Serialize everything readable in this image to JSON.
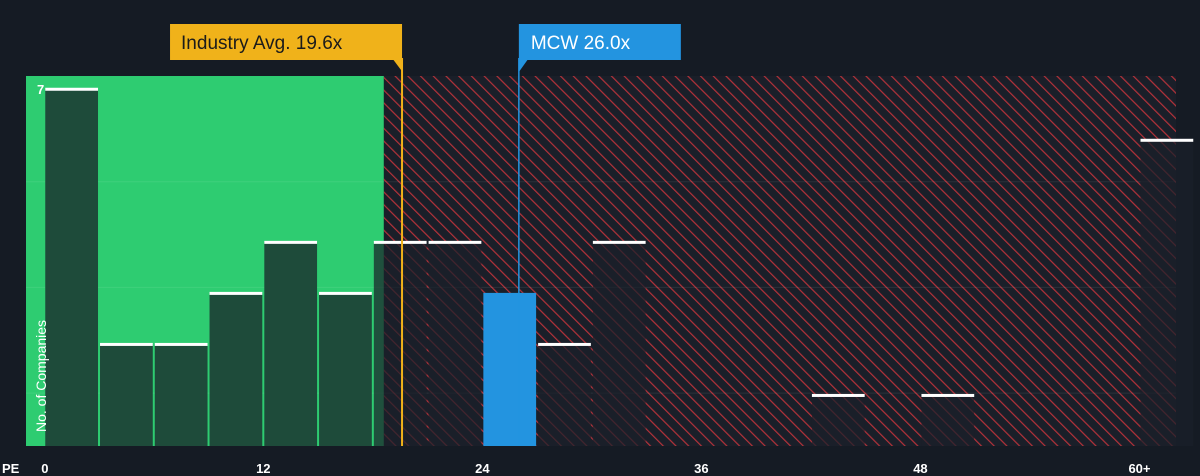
{
  "chart_data": {
    "type": "bar",
    "xlabel": "PE",
    "ylabel": "No. of Companies",
    "x_ticks": [
      "0",
      "12",
      "24",
      "36",
      "48",
      "60+"
    ],
    "x_tick_values": [
      0,
      12,
      24,
      36,
      48,
      60
    ],
    "xlim": [
      -1,
      62
    ],
    "y_tick_labels": [
      "7"
    ],
    "y_tick_values": [
      7
    ],
    "ylim": [
      0,
      7.25
    ],
    "bin_width": 3,
    "bins": [
      {
        "start": 0,
        "count": 7
      },
      {
        "start": 3,
        "count": 2
      },
      {
        "start": 6,
        "count": 2
      },
      {
        "start": 9,
        "count": 3
      },
      {
        "start": 12,
        "count": 4
      },
      {
        "start": 15,
        "count": 3
      },
      {
        "start": 18,
        "count": 4
      },
      {
        "start": 21,
        "count": 4
      },
      {
        "start": 24,
        "count": 3
      },
      {
        "start": 27,
        "count": 2
      },
      {
        "start": 30,
        "count": 4
      },
      {
        "start": 33,
        "count": 0
      },
      {
        "start": 36,
        "count": 0
      },
      {
        "start": 39,
        "count": 0
      },
      {
        "start": 42,
        "count": 1
      },
      {
        "start": 45,
        "count": 0
      },
      {
        "start": 48,
        "count": 1
      },
      {
        "start": 51,
        "count": 0
      },
      {
        "start": 54,
        "count": 0
      },
      {
        "start": 57,
        "count": 0
      },
      {
        "start": 60,
        "count": 6
      }
    ],
    "good_value_zone_end": 18.6,
    "industry_avg": {
      "label": "Industry Avg. 19.6x",
      "value": 19.6
    },
    "company": {
      "label": "MCW 26.0x",
      "value": 26.0
    },
    "colors": {
      "background": "#151b24",
      "good_zone": "#2ecc71",
      "bad_zone_stripe": "#c0392b",
      "bar_fill": "#1e4b3a",
      "bar_fill_bad": "#1e2530",
      "bar_top": "#ffffff",
      "company_bar": "#2394e0",
      "industry_callout": "#f0b21a",
      "company_callout": "#2394e0"
    }
  }
}
